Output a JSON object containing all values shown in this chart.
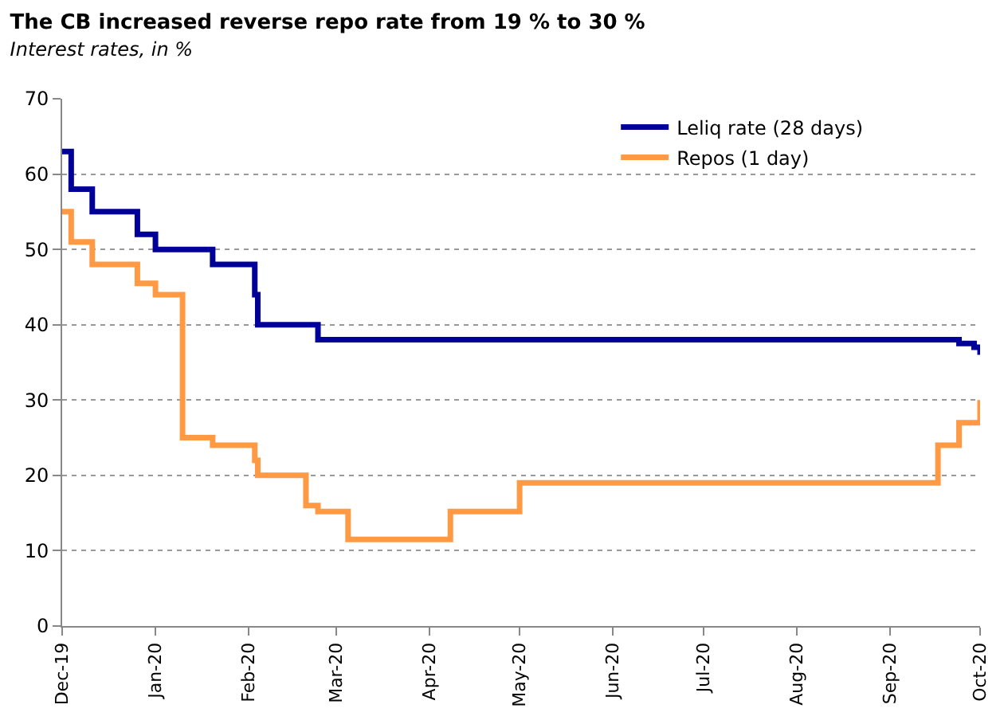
{
  "chart_data": {
    "type": "step",
    "title": "The CB increased reverse repo rate from 19 % to 30 %",
    "subtitle": "Interest rates, in %",
    "series": [
      {
        "name": "Leliq rate (28 days)",
        "color": "#000099",
        "x": [
          "2019-12-01",
          "2019-12-04",
          "2019-12-11",
          "2019-12-26",
          "2020-01-01",
          "2020-01-20",
          "2020-02-03",
          "2020-02-04",
          "2020-02-24",
          "2020-09-24",
          "2020-09-29",
          "2020-10-01"
        ],
        "values": [
          63,
          58,
          55,
          52,
          50,
          48,
          44,
          40,
          38,
          37.5,
          37,
          36
        ]
      },
      {
        "name": "Repos (1 day)",
        "color": "#ff9944",
        "x": [
          "2019-12-01",
          "2019-12-04",
          "2019-12-11",
          "2019-12-26",
          "2020-01-01",
          "2020-01-10",
          "2020-01-20",
          "2020-02-03",
          "2020-02-04",
          "2020-02-20",
          "2020-02-24",
          "2020-03-05",
          "2020-04-08",
          "2020-05-01",
          "2020-09-17",
          "2020-09-24",
          "2020-10-01"
        ],
        "values": [
          55,
          51,
          48,
          45.5,
          44,
          25,
          24,
          22,
          20,
          16,
          15.2,
          11.5,
          15.2,
          19,
          24,
          27,
          30
        ]
      }
    ],
    "xlim": [
      "2019-12-01",
      "2020-10-01"
    ],
    "xticks": [
      {
        "value": "2019-12-01",
        "label": "Dec-19"
      },
      {
        "value": "2020-01-01",
        "label": "Jan-20"
      },
      {
        "value": "2020-02-01",
        "label": "Feb-20"
      },
      {
        "value": "2020-03-01",
        "label": "Mar-20"
      },
      {
        "value": "2020-04-01",
        "label": "Apr-20"
      },
      {
        "value": "2020-05-01",
        "label": "May-20"
      },
      {
        "value": "2020-06-01",
        "label": "Jun-20"
      },
      {
        "value": "2020-07-01",
        "label": "Jul-20"
      },
      {
        "value": "2020-08-01",
        "label": "Aug-20"
      },
      {
        "value": "2020-09-01",
        "label": "Sep-20"
      },
      {
        "value": "2020-10-01",
        "label": "Oct-20"
      }
    ],
    "ylim": [
      0,
      70
    ],
    "yticks": [
      0,
      10,
      20,
      30,
      40,
      50,
      60,
      70
    ],
    "grid": "y",
    "legend": "top right",
    "line_style": "solid",
    "marker": "none"
  }
}
